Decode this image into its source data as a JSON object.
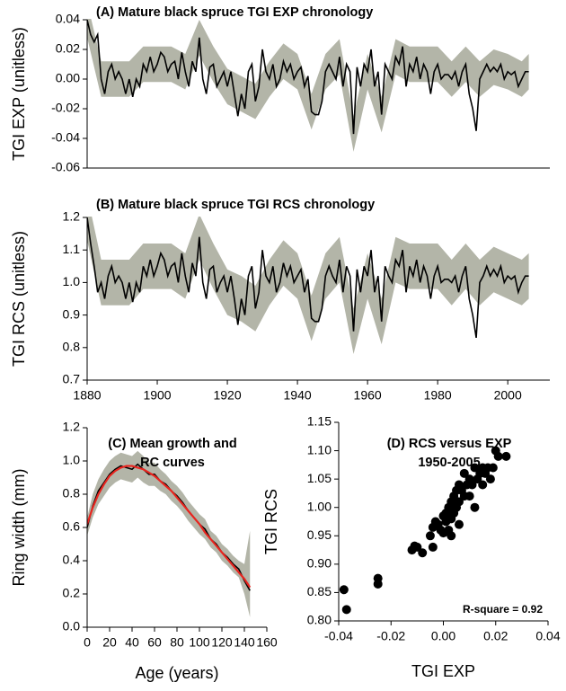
{
  "chart_data": [
    {
      "type": "line",
      "title": "(A) Mature black spruce TGI EXP chronology",
      "ylabel": "TGI EXP (unitless)",
      "xlim": [
        1880,
        2012
      ],
      "ylim": [
        -0.06,
        0.04
      ],
      "yticks": [
        -0.06,
        -0.04,
        -0.02,
        {
          "value": 0,
          "label": "0.00"
        },
        0.02,
        0.04
      ],
      "x": [
        1880,
        1881,
        1882,
        1883,
        1884,
        1885,
        1886,
        1887,
        1888,
        1889,
        1890,
        1891,
        1892,
        1893,
        1894,
        1895,
        1896,
        1897,
        1898,
        1899,
        1900,
        1901,
        1902,
        1903,
        1904,
        1905,
        1906,
        1907,
        1908,
        1909,
        1910,
        1911,
        1912,
        1913,
        1914,
        1915,
        1916,
        1917,
        1918,
        1919,
        1920,
        1921,
        1922,
        1923,
        1924,
        1925,
        1926,
        1927,
        1928,
        1929,
        1930,
        1931,
        1932,
        1933,
        1934,
        1935,
        1936,
        1937,
        1938,
        1939,
        1940,
        1941,
        1942,
        1943,
        1944,
        1945,
        1946,
        1947,
        1948,
        1949,
        1950,
        1951,
        1952,
        1953,
        1954,
        1955,
        1956,
        1957,
        1958,
        1959,
        1960,
        1961,
        1962,
        1963,
        1964,
        1965,
        1966,
        1967,
        1968,
        1969,
        1970,
        1971,
        1972,
        1973,
        1974,
        1975,
        1976,
        1977,
        1978,
        1979,
        1980,
        1981,
        1982,
        1983,
        1984,
        1985,
        1986,
        1987,
        1988,
        1989,
        1990,
        1991,
        1992,
        1993,
        1994,
        1995,
        1996,
        1997,
        1998,
        1999,
        2000,
        2001,
        2002,
        2003,
        2004,
        2005,
        2006
      ],
      "series": [
        {
          "color": "#000000",
          "values": [
            0.04,
            0.03,
            0.025,
            0.03,
            0,
            -0.01,
            0.005,
            0.01,
            0,
            0.005,
            0,
            -0.01,
            0,
            -0.012,
            0,
            -0.005,
            0.01,
            0.005,
            0.015,
            0.005,
            0.01,
            0.018,
            0.015,
            0.005,
            0.01,
            0.012,
            0,
            0.018,
            0.005,
            -0.005,
            0.012,
            0.005,
            0.028,
            0,
            -0.01,
            0.008,
            0.01,
            -0.005,
            0,
            0.005,
            -0.005,
            0.005,
            -0.01,
            -0.025,
            -0.01,
            -0.02,
            0.005,
            0.01,
            -0.015,
            -0.005,
            0.02,
            0.005,
            0,
            0.01,
            -0.005,
            0,
            0.012,
            0.005,
            0.01,
            0,
            0.005,
            0.008,
            -0.005,
            0.002,
            -0.022,
            -0.024,
            -0.024,
            -0.015,
            0.005,
            0.01,
            0.005,
            0,
            0.015,
            -0.005,
            0.01,
            0.005,
            -0.037,
            0.008,
            -0.005,
            0.01,
            0.005,
            0.02,
            -0.005,
            0.005,
            -0.024,
            0.01,
            0.005,
            0,
            0.015,
            0.01,
            0.022,
            -0.005,
            0.01,
            0.005,
            0.015,
            0,
            0.01,
            0.005,
            -0.01,
            0.005,
            0.01,
            0,
            0.003,
            0.003,
            0,
            0.005,
            -0.005,
            0.005,
            0.01,
            -0.01,
            -0.02,
            -0.035,
            0,
            0.005,
            0.01,
            0.005,
            0.008,
            0.005,
            0.01,
            0,
            0.005,
            0.003,
            0.005,
            -0.005,
            0,
            0.005,
            0.005
          ]
        }
      ],
      "band": {
        "color": "#b3b5a8",
        "x": [
          1880,
          1884,
          1888,
          1892,
          1896,
          1900,
          1904,
          1908,
          1912,
          1916,
          1920,
          1924,
          1928,
          1932,
          1936,
          1940,
          1944,
          1948,
          1952,
          1956,
          1960,
          1964,
          1968,
          1972,
          1976,
          1980,
          1984,
          1988,
          1992,
          1996,
          2000,
          2004,
          2006
        ],
        "lower": [
          0.028,
          -0.012,
          -0.012,
          -0.012,
          -0.002,
          -0.002,
          -0.002,
          -0.007,
          0.016,
          -0.002,
          -0.017,
          -0.022,
          -0.027,
          -0.012,
          0,
          -0.007,
          -0.034,
          -0.007,
          0.003,
          -0.049,
          -0.007,
          -0.036,
          0.003,
          -0.002,
          -0.002,
          -0.002,
          -0.012,
          -0.002,
          -0.012,
          -0.004,
          -0.007,
          -0.012,
          -0.007
        ],
        "upper": [
          0.052,
          0.012,
          0.012,
          0.012,
          0.022,
          0.022,
          0.022,
          0.017,
          0.04,
          0.022,
          0.007,
          0.002,
          -0.003,
          0.012,
          0.024,
          0.017,
          -0.01,
          0.017,
          0.027,
          -0.025,
          0.017,
          -0.012,
          0.027,
          0.022,
          0.022,
          0.022,
          0.012,
          0.022,
          0.012,
          0.02,
          0.017,
          0.012,
          0.017
        ]
      }
    },
    {
      "type": "line",
      "title": "(B) Mature black spruce TGI RCS chronology",
      "ylabel": "TGI RCS (unitless)",
      "xlim": [
        1880,
        2012
      ],
      "ylim": [
        0.7,
        1.2
      ],
      "xticks": [
        1880,
        1900,
        1920,
        1940,
        1960,
        1980,
        2000
      ],
      "yticks": [
        0.7,
        0.8,
        0.9,
        {
          "value": 1,
          "label": "1.0"
        },
        1.1,
        1.2
      ],
      "x": [
        1880,
        1881,
        1882,
        1883,
        1884,
        1885,
        1886,
        1887,
        1888,
        1889,
        1890,
        1891,
        1892,
        1893,
        1894,
        1895,
        1896,
        1897,
        1898,
        1899,
        1900,
        1901,
        1902,
        1903,
        1904,
        1905,
        1906,
        1907,
        1908,
        1909,
        1910,
        1911,
        1912,
        1913,
        1914,
        1915,
        1916,
        1917,
        1918,
        1919,
        1920,
        1921,
        1922,
        1923,
        1924,
        1925,
        1926,
        1927,
        1928,
        1929,
        1930,
        1931,
        1932,
        1933,
        1934,
        1935,
        1936,
        1937,
        1938,
        1939,
        1940,
        1941,
        1942,
        1943,
        1944,
        1945,
        1946,
        1947,
        1948,
        1949,
        1950,
        1951,
        1952,
        1953,
        1954,
        1955,
        1956,
        1957,
        1958,
        1959,
        1960,
        1961,
        1962,
        1963,
        1964,
        1965,
        1966,
        1967,
        1968,
        1969,
        1970,
        1971,
        1972,
        1973,
        1974,
        1975,
        1976,
        1977,
        1978,
        1979,
        1980,
        1981,
        1982,
        1983,
        1984,
        1985,
        1986,
        1987,
        1988,
        1989,
        1990,
        1991,
        1992,
        1993,
        1994,
        1995,
        1996,
        1997,
        1998,
        1999,
        2000,
        2001,
        2002,
        2003,
        2004,
        2005,
        2006
      ],
      "series": [
        {
          "color": "#000000",
          "values": [
            1.2,
            1.12,
            1.05,
            0.97,
            1.0,
            0.95,
            1.02,
            1.05,
            1.0,
            1.02,
            1.0,
            0.95,
            1.0,
            0.94,
            1.0,
            0.97,
            1.05,
            1.02,
            1.07,
            1.02,
            1.05,
            1.09,
            1.07,
            1.02,
            1.05,
            1.06,
            1.0,
            1.09,
            1.02,
            0.97,
            1.06,
            1.02,
            1.14,
            1.0,
            0.95,
            1.04,
            1.05,
            0.97,
            1.0,
            1.02,
            0.97,
            1.02,
            0.95,
            0.87,
            0.95,
            0.9,
            1.02,
            1.05,
            0.92,
            0.97,
            1.1,
            1.02,
            1.0,
            1.05,
            0.97,
            1.0,
            1.06,
            1.02,
            1.05,
            1.0,
            1.02,
            1.04,
            0.97,
            1.01,
            0.89,
            0.88,
            0.88,
            0.92,
            1.02,
            1.05,
            1.02,
            1.0,
            1.07,
            0.97,
            1.05,
            1.02,
            0.85,
            1.04,
            0.97,
            1.05,
            1.02,
            1.1,
            0.97,
            1.02,
            0.88,
            1.05,
            1.02,
            1.0,
            1.07,
            1.05,
            1.1,
            0.97,
            1.05,
            1.02,
            1.07,
            1.0,
            1.05,
            1.02,
            0.95,
            1.02,
            1.05,
            1.0,
            1.01,
            1.01,
            1.0,
            1.02,
            0.97,
            1.02,
            1.05,
            0.95,
            0.9,
            0.83,
            1.0,
            1.02,
            1.05,
            1.02,
            1.04,
            1.02,
            1.05,
            1.0,
            1.02,
            1.01,
            1.02,
            0.97,
            1.0,
            1.02,
            1.02
          ]
        }
      ],
      "band": {
        "color": "#b3b5a8",
        "x": [
          1880,
          1884,
          1888,
          1892,
          1896,
          1900,
          1904,
          1908,
          1912,
          1916,
          1920,
          1924,
          1928,
          1932,
          1936,
          1940,
          1944,
          1948,
          1952,
          1956,
          1960,
          1964,
          1968,
          1972,
          1976,
          1980,
          1984,
          1988,
          1992,
          1996,
          2000,
          2004,
          2006
        ],
        "lower": [
          1.13,
          0.93,
          0.93,
          0.93,
          0.98,
          0.98,
          0.98,
          0.95,
          1.07,
          0.98,
          0.9,
          0.88,
          0.85,
          0.93,
          0.99,
          0.95,
          0.82,
          0.95,
          1.0,
          0.78,
          0.95,
          0.81,
          1.0,
          0.98,
          0.98,
          0.98,
          0.93,
          0.98,
          0.93,
          0.97,
          0.95,
          0.93,
          0.95
        ],
        "upper": [
          1.27,
          1.07,
          1.07,
          1.07,
          1.12,
          1.12,
          1.12,
          1.09,
          1.21,
          1.12,
          1.04,
          1.02,
          0.99,
          1.07,
          1.13,
          1.09,
          0.96,
          1.09,
          1.14,
          0.92,
          1.09,
          0.95,
          1.14,
          1.12,
          1.12,
          1.12,
          1.07,
          1.12,
          1.07,
          1.11,
          1.09,
          1.07,
          1.09
        ]
      }
    },
    {
      "type": "line",
      "title": [
        "(C) Mean growth and",
        "RC curves"
      ],
      "xlabel": "Age (years)",
      "ylabel": "Ring width (mm)",
      "xlim": [
        0,
        160
      ],
      "ylim": [
        0,
        1.2
      ],
      "xticks": [
        0,
        20,
        40,
        60,
        80,
        100,
        120,
        140,
        160
      ],
      "yticks": [
        {
          "value": 0,
          "label": "0.0"
        },
        0.2,
        0.4,
        0.6,
        0.8,
        {
          "value": 1,
          "label": "1.0"
        },
        1.2
      ],
      "x": [
        0,
        5,
        10,
        15,
        20,
        25,
        30,
        35,
        40,
        45,
        50,
        55,
        60,
        65,
        70,
        75,
        80,
        85,
        90,
        95,
        100,
        105,
        110,
        115,
        120,
        125,
        130,
        135,
        140,
        145
      ],
      "series": [
        {
          "color": "#000000",
          "values": [
            0.6,
            0.73,
            0.82,
            0.87,
            0.92,
            0.95,
            0.97,
            0.96,
            0.95,
            0.98,
            0.95,
            0.92,
            0.92,
            0.88,
            0.86,
            0.82,
            0.79,
            0.75,
            0.7,
            0.66,
            0.62,
            0.59,
            0.53,
            0.5,
            0.45,
            0.42,
            0.38,
            0.35,
            0.28,
            0.22
          ]
        },
        {
          "color": "#e8251f",
          "values": [
            0.62,
            0.72,
            0.8,
            0.86,
            0.91,
            0.94,
            0.96,
            0.97,
            0.97,
            0.96,
            0.95,
            0.93,
            0.91,
            0.88,
            0.85,
            0.82,
            0.78,
            0.74,
            0.7,
            0.66,
            0.62,
            0.57,
            0.53,
            0.49,
            0.45,
            0.41,
            0.37,
            0.33,
            0.29,
            0.24
          ]
        }
      ],
      "band": {
        "color": "#b3b5a8",
        "lower": [
          0.55,
          0.66,
          0.74,
          0.79,
          0.84,
          0.87,
          0.89,
          0.88,
          0.87,
          0.9,
          0.87,
          0.85,
          0.85,
          0.82,
          0.8,
          0.76,
          0.73,
          0.69,
          0.64,
          0.6,
          0.56,
          0.53,
          0.48,
          0.45,
          0.4,
          0.37,
          0.33,
          0.3,
          0.2,
          0.06
        ],
        "upper": [
          0.66,
          0.8,
          0.89,
          0.95,
          1.0,
          1.03,
          1.05,
          1.04,
          1.03,
          1.06,
          1.03,
          0.99,
          0.99,
          0.95,
          0.92,
          0.88,
          0.85,
          0.81,
          0.76,
          0.72,
          0.68,
          0.65,
          0.58,
          0.55,
          0.5,
          0.47,
          0.43,
          0.4,
          0.38,
          0.58
        ]
      }
    },
    {
      "type": "scatter",
      "title": [
        "(D) RCS versus EXP",
        "1950-2005"
      ],
      "xlabel": "TGI EXP",
      "ylabel": "TGI RCS",
      "annotation": "R-square = 0.92",
      "xlim": [
        -0.04,
        0.04
      ],
      "ylim": [
        0.8,
        1.15
      ],
      "xticks": [
        -0.04,
        -0.02,
        {
          "value": 0,
          "label": "0.00"
        },
        0.02,
        0.04
      ],
      "yticks": [
        {
          "value": 0.8,
          "label": "0.80"
        },
        0.85,
        {
          "value": 0.9,
          "label": "0.90"
        },
        0.95,
        {
          "value": 1,
          "label": "1.00"
        },
        1.05,
        {
          "value": 1.1,
          "label": "1.10"
        },
        1.15
      ],
      "x": [
        -0.038,
        -0.037,
        -0.025,
        -0.025,
        -0.012,
        -0.011,
        -0.01,
        -0.008,
        -0.005,
        -0.004,
        -0.004,
        -0.003,
        -0.002,
        -0.001,
        0,
        0,
        0.001,
        0.001,
        0.002,
        0.002,
        0.003,
        0.003,
        0.004,
        0.004,
        0.005,
        0.005,
        0.006,
        0.006,
        0.007,
        0.008,
        0.008,
        0.009,
        0.01,
        0.01,
        0.011,
        0.012,
        0.012,
        0.013,
        0.014,
        0.015,
        0.015,
        0.016,
        0.017,
        0.018,
        0.019,
        0.02,
        0.021,
        0.024,
        0.006,
        0.003
      ],
      "series": [
        {
          "color": "#000000",
          "values": [
            0.855,
            0.82,
            0.865,
            0.875,
            0.925,
            0.932,
            0.93,
            0.92,
            0.95,
            0.93,
            0.965,
            0.975,
            0.97,
            0.96,
            0.955,
            0.985,
            0.975,
            0.99,
            1.0,
            0.96,
            0.98,
            1.01,
            1.02,
            0.99,
            1.03,
            1.0,
            1.04,
            1.01,
            1.03,
            1.02,
            1.06,
            1.04,
            1.05,
            1.02,
            1.04,
            1.07,
            1.0,
            1.05,
            1.06,
            1.04,
            1.07,
            1.06,
            1.07,
            1.05,
            1.07,
            1.1,
            1.09,
            1.09,
            0.97,
            0.95
          ]
        }
      ]
    }
  ]
}
